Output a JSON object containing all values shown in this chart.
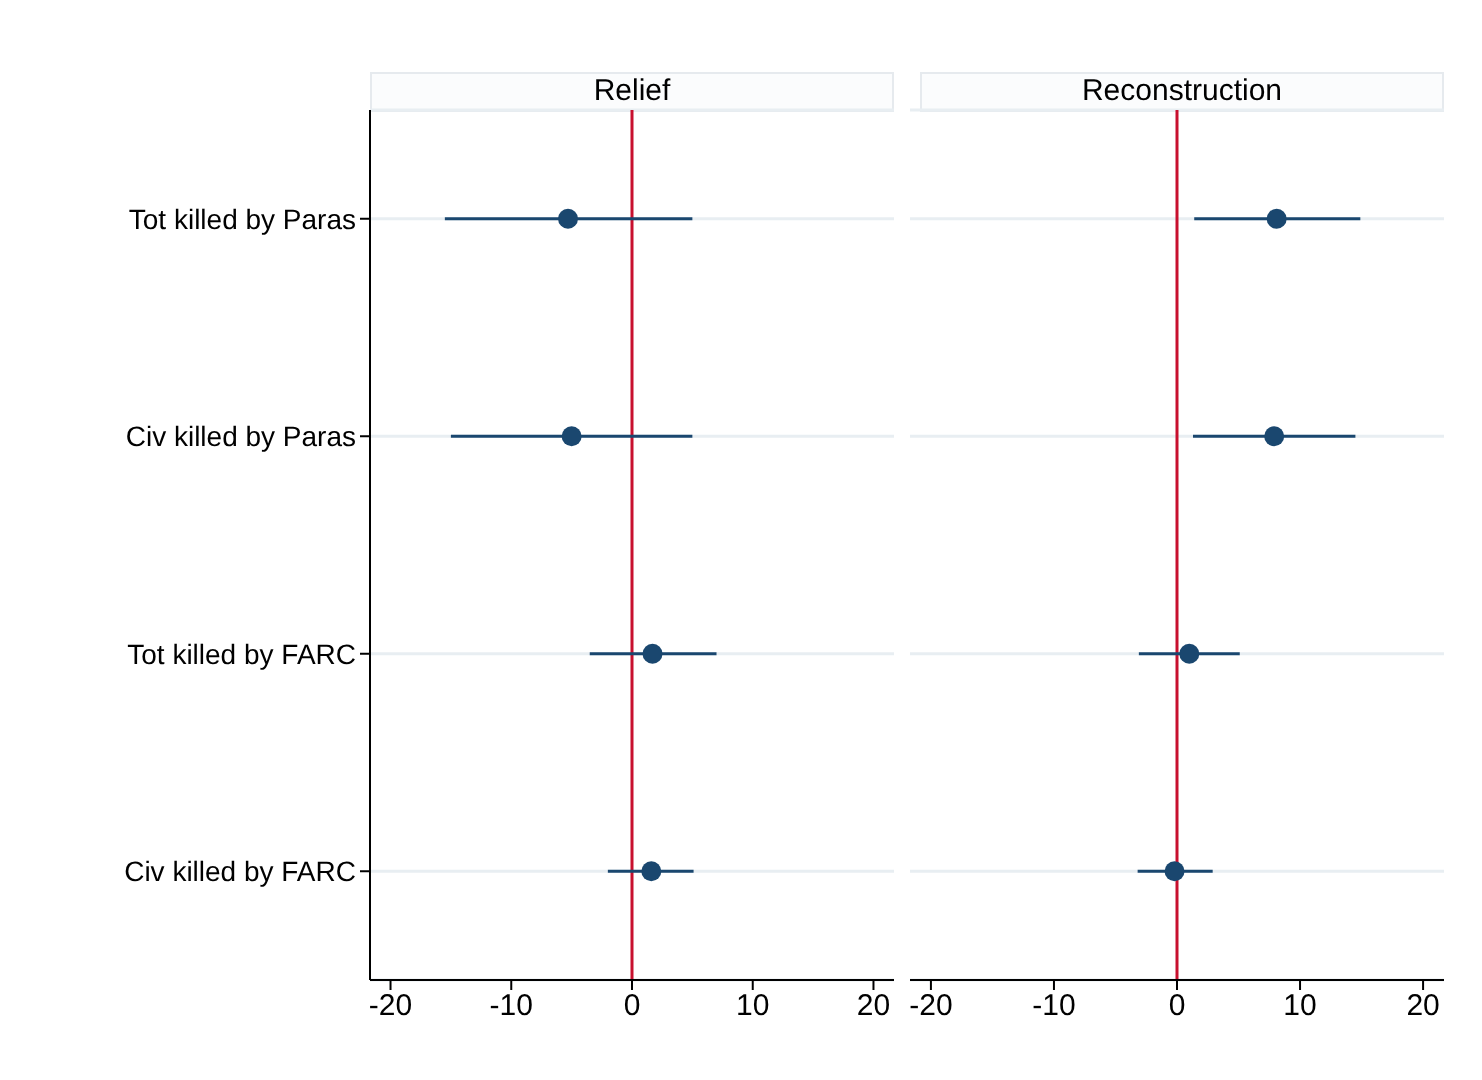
{
  "chart_data": [
    {
      "type": "scatter",
      "title": "Relief",
      "orientation": "horizontal",
      "categories": [
        "Tot killed by Paras",
        "Civ killed by Paras",
        "Tot killed by FARC",
        "Civ killed by FARC"
      ],
      "series": [
        {
          "color": "#1a476f",
          "values": [
            -5.3,
            -5.0,
            1.7,
            1.6
          ],
          "errors": [
            [
              -15.5,
              5.0
            ],
            [
              -15.0,
              5.0
            ],
            [
              -3.5,
              7.0
            ],
            [
              -2.0,
              5.1
            ]
          ]
        }
      ],
      "xlim": [
        -21.7,
        21.7
      ],
      "xticks": [
        -20,
        -10,
        0,
        10,
        20
      ],
      "ref_lines": [
        {
          "axis": "x",
          "value": 0,
          "color": "#c8102e"
        }
      ],
      "grid": "y",
      "marker": "circle"
    },
    {
      "type": "scatter",
      "title": "Reconstruction",
      "orientation": "horizontal",
      "categories": [
        "Tot killed by Paras",
        "Civ killed by Paras",
        "Tot killed by FARC",
        "Civ killed by FARC"
      ],
      "series": [
        {
          "color": "#1a476f",
          "values": [
            8.1,
            7.9,
            1.0,
            -0.2
          ],
          "errors": [
            [
              1.4,
              14.9
            ],
            [
              1.3,
              14.5
            ],
            [
              -3.1,
              5.1
            ],
            [
              -3.2,
              2.9
            ]
          ]
        }
      ],
      "xlim": [
        -21.7,
        21.7
      ],
      "xticks": [
        -20,
        -10,
        0,
        10,
        20
      ],
      "ref_lines": [
        {
          "axis": "x",
          "value": 0,
          "color": "#c8102e"
        }
      ],
      "grid": "y",
      "marker": "circle",
      "tick_labels": "x"
    }
  ]
}
